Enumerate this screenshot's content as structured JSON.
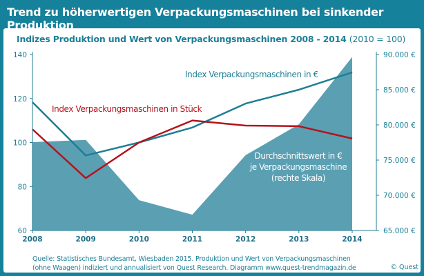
{
  "title": "Trend zu höherwertigen Verpackungsmaschinen bei sinkender Produktion",
  "subtitle": "Indizes Produktion und Wert von Verpackungsmaschinen 2008 - 2014",
  "subtitle_note": "(2010 = 100)",
  "source_line1": "Quelle: Statistisches Bundesamt, Wiesbaden 2015. Produktion und Wert von Verpackungsmaschinen",
  "source_line2": "(ohne Waagen) indiziert und annualisiert von Quest Research. Diagramm www.quest-trendmagazin.de",
  "copyright": "© Quest",
  "colors": {
    "frame": "#15819b",
    "area": "#5b9fb2",
    "index_eur": "#1d7f96",
    "index_units": "#b5121b"
  },
  "chart_data": {
    "type": "line+area",
    "categories": [
      "2008",
      "2009",
      "2010",
      "2011",
      "2012",
      "2013",
      "2014"
    ],
    "y_left": {
      "lim": [
        60,
        140
      ],
      "ticks": [
        "60",
        "80",
        "100",
        "120",
        "140"
      ]
    },
    "y_right": {
      "lim": [
        65000,
        90000
      ],
      "ticks": [
        "65.000 €",
        "70.000 €",
        "75.000 €",
        "80.000 €",
        "85.000 €",
        "90.000 €"
      ]
    },
    "grid": false,
    "series": [
      {
        "name": "Index Verpackungsmaschinen in €",
        "type": "line",
        "axis": "left",
        "values": [
          118.3,
          94.1,
          100,
          106.8,
          117.7,
          124.0,
          131.9
        ]
      },
      {
        "name": "Index Verpackungsmaschinen in Stück",
        "type": "line",
        "axis": "left",
        "values": [
          106.0,
          83.8,
          100,
          110.0,
          107.7,
          107.4,
          101.8
        ]
      },
      {
        "name": "Durchschnittswert  in € je Verpackungsmaschine (rechte Skala)",
        "name_lines": [
          "Durchschnittswert  in €",
          "je Verpackungsmaschine",
          "(rechte Skala)"
        ],
        "type": "area",
        "axis": "right",
        "values": [
          77550,
          77870,
          69300,
          67240,
          75700,
          80080,
          89640
        ]
      }
    ]
  }
}
